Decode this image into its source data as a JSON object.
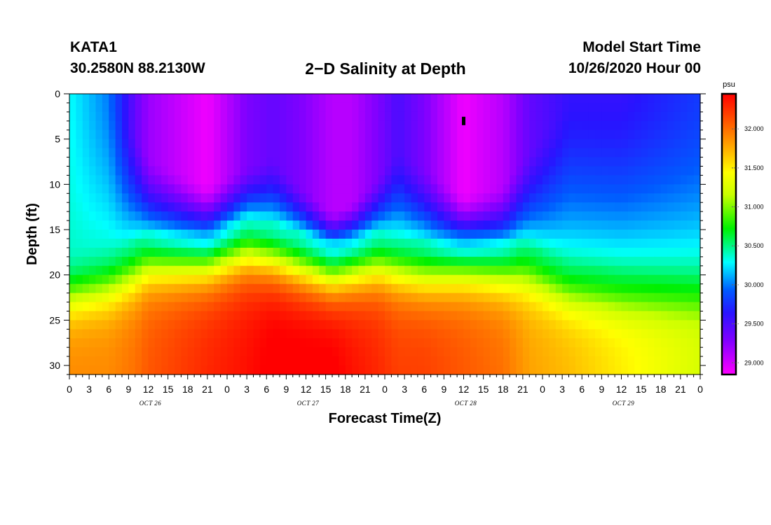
{
  "header": {
    "station_id": "KATA1",
    "coordinates": "30.2580N 88.2130W",
    "title": "2−D Salinity at Depth",
    "model_start_label": "Model Start Time",
    "model_start_value": "10/26/2020 Hour 00"
  },
  "chart_data": {
    "type": "heatmap",
    "title": "2-D Salinity at Depth",
    "xlabel": "Forecast Time(Z)",
    "ylabel": "Depth (ft)",
    "x_range_hours": [
      0,
      96
    ],
    "ylim": [
      0,
      31
    ],
    "y_inverted": true,
    "x_tick_labels": [
      "0",
      "3",
      "6",
      "9",
      "12",
      "15",
      "18",
      "21",
      "0",
      "3",
      "6",
      "9",
      "12",
      "15",
      "18",
      "21",
      "0",
      "3",
      "6",
      "9",
      "12",
      "15",
      "18",
      "21",
      "0",
      "3",
      "6",
      "9",
      "12",
      "15",
      "18",
      "21",
      "0"
    ],
    "y_ticks": [
      0,
      5,
      10,
      15,
      20,
      25,
      30
    ],
    "date_labels": [
      {
        "label": "OCT 26",
        "hour": 12
      },
      {
        "label": "OCT 27",
        "hour": 36
      },
      {
        "label": "OCT 28",
        "hour": 60
      },
      {
        "label": "OCT 29",
        "hour": 84
      }
    ],
    "colorbar": {
      "unit": "psu",
      "min": 28.85,
      "max": 32.45,
      "tick_values": [
        29.0,
        29.5,
        30.0,
        30.5,
        31.0,
        31.5,
        32.0
      ],
      "tick_labels": [
        "29.000",
        "29.500",
        "30.000",
        "30.500",
        "31.000",
        "31.500",
        "32.000"
      ]
    },
    "profiles": [
      {
        "hour": 0,
        "top_value": 30.3,
        "halocline_depth": 22.0,
        "low_zone_depth": 0,
        "bottom_value": 31.9
      },
      {
        "hour": 6,
        "top_value": 30.0,
        "halocline_depth": 21.0,
        "low_zone_depth": 0,
        "bottom_value": 31.9
      },
      {
        "hour": 10,
        "top_value": 29.4,
        "halocline_depth": 19.5,
        "low_zone_depth": 4,
        "bottom_value": 32.0
      },
      {
        "hour": 12,
        "top_value": 29.2,
        "halocline_depth": 18.5,
        "low_zone_depth": 7,
        "bottom_value": 32.1
      },
      {
        "hour": 21,
        "top_value": 28.9,
        "halocline_depth": 18.2,
        "low_zone_depth": 10,
        "bottom_value": 32.3
      },
      {
        "hour": 27,
        "top_value": 29.3,
        "halocline_depth": 17.0,
        "low_zone_depth": 8,
        "bottom_value": 32.4
      },
      {
        "hour": 31,
        "top_value": 29.4,
        "halocline_depth": 17.5,
        "low_zone_depth": 7,
        "bottom_value": 32.5
      },
      {
        "hour": 35,
        "top_value": 29.3,
        "halocline_depth": 18.5,
        "low_zone_depth": 10,
        "bottom_value": 32.5
      },
      {
        "hour": 40,
        "top_value": 29.1,
        "halocline_depth": 19.5,
        "low_zone_depth": 13,
        "bottom_value": 32.5
      },
      {
        "hour": 43,
        "top_value": 29.1,
        "halocline_depth": 19.0,
        "low_zone_depth": 12,
        "bottom_value": 32.4
      },
      {
        "hour": 47,
        "top_value": 29.3,
        "halocline_depth": 18.5,
        "low_zone_depth": 9,
        "bottom_value": 32.3
      },
      {
        "hour": 50,
        "top_value": 29.5,
        "halocline_depth": 19.0,
        "low_zone_depth": 6,
        "bottom_value": 32.2
      },
      {
        "hour": 54,
        "top_value": 29.3,
        "halocline_depth": 19.5,
        "low_zone_depth": 8,
        "bottom_value": 32.2
      },
      {
        "hour": 60,
        "top_value": 28.9,
        "halocline_depth": 19.0,
        "low_zone_depth": 11,
        "bottom_value": 32.1
      },
      {
        "hour": 66,
        "top_value": 29.1,
        "halocline_depth": 19.5,
        "low_zone_depth": 10,
        "bottom_value": 32.0
      },
      {
        "hour": 70,
        "top_value": 29.4,
        "halocline_depth": 20.0,
        "low_zone_depth": 6,
        "bottom_value": 31.8
      },
      {
        "hour": 76,
        "top_value": 29.6,
        "halocline_depth": 22.0,
        "low_zone_depth": 0,
        "bottom_value": 31.7
      },
      {
        "hour": 84,
        "top_value": 29.6,
        "halocline_depth": 23.0,
        "low_zone_depth": 0,
        "bottom_value": 31.5
      },
      {
        "hour": 96,
        "top_value": 29.8,
        "halocline_depth": 24.0,
        "low_zone_depth": 0,
        "bottom_value": 31.2
      }
    ],
    "marker": {
      "hour": 60,
      "depth": 3
    }
  }
}
